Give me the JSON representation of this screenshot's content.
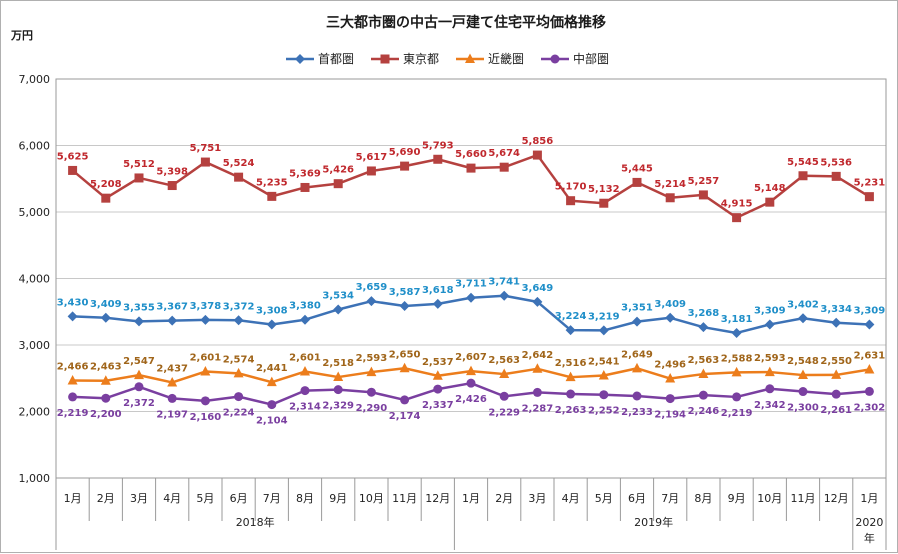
{
  "chart_data": {
    "type": "line",
    "title": "三大都市圏の中古一戸建て住宅平均価格推移",
    "unit_label": "万円",
    "ylim": [
      1000,
      7000
    ],
    "yticks": [
      "1,000",
      "2,000",
      "3,000",
      "4,000",
      "5,000",
      "6,000",
      "7,000"
    ],
    "grid": true,
    "legend_position": "top",
    "categories": [
      "1月",
      "2月",
      "3月",
      "4月",
      "5月",
      "6月",
      "7月",
      "8月",
      "9月",
      "10月",
      "11月",
      "12月",
      "1月",
      "2月",
      "3月",
      "4月",
      "5月",
      "6月",
      "7月",
      "8月",
      "9月",
      "10月",
      "11月",
      "12月",
      "1月"
    ],
    "year_groups": [
      {
        "label": "2018年",
        "span": 12
      },
      {
        "label": "2019年",
        "span": 12
      },
      {
        "label": "2020\n年",
        "span": 1
      }
    ],
    "series": [
      {
        "name": "首都圏",
        "color": "#3d72b6",
        "label_color": "#1f8fc9",
        "marker": "diamond",
        "values": [
          3430,
          3409,
          3355,
          3367,
          3378,
          3372,
          3308,
          3380,
          3534,
          3659,
          3587,
          3618,
          3711,
          3741,
          3649,
          3224,
          3219,
          3351,
          3409,
          3268,
          3181,
          3309,
          3402,
          3334,
          3309
        ],
        "labels": [
          "3,430",
          "3,409",
          "3,355",
          "3,367",
          "3,378",
          "3,372",
          "3,308",
          "3,380",
          "3,534",
          "3,659",
          "3,587",
          "3,618",
          "3,711",
          "3,741",
          "3,649",
          "3,224",
          "3,219",
          "3,351",
          "3,409",
          "3,268",
          "3,181",
          "3,309",
          "3,402",
          "3,334",
          "3,309"
        ]
      },
      {
        "name": "東京都",
        "color": "#b5413f",
        "label_color": "#c0282d",
        "marker": "square",
        "values": [
          5625,
          5208,
          5512,
          5398,
          5751,
          5524,
          5235,
          5369,
          5426,
          5617,
          5690,
          5793,
          5660,
          5674,
          5856,
          5170,
          5132,
          5445,
          5214,
          5257,
          4915,
          5148,
          5545,
          5536,
          5231
        ],
        "labels": [
          "5,625",
          "5,208",
          "5,512",
          "5,398",
          "5,751",
          "5,524",
          "5,235",
          "5,369",
          "5,426",
          "5,617",
          "5,690",
          "5,793",
          "5,660",
          "5,674",
          "5,856",
          "5,170",
          "5,132",
          "5,445",
          "5,214",
          "5,257",
          "4,915",
          "5,148",
          "5,545",
          "5,536",
          "5,231"
        ]
      },
      {
        "name": "近畿圏",
        "color": "#ec7d1c",
        "label_color": "#a0651a",
        "marker": "triangle",
        "values": [
          2466,
          2463,
          2547,
          2437,
          2601,
          2574,
          2441,
          2601,
          2518,
          2593,
          2650,
          2537,
          2607,
          2563,
          2642,
          2516,
          2541,
          2649,
          2496,
          2563,
          2588,
          2593,
          2548,
          2550,
          2631
        ],
        "labels": [
          "2,466",
          "2,463",
          "2,547",
          "2,437",
          "2,601",
          "2,574",
          "2,441",
          "2,601",
          "2,518",
          "2,593",
          "2,650",
          "2,537",
          "2,607",
          "2,563",
          "2,642",
          "2,516",
          "2,541",
          "2,649",
          "2,496",
          "2,563",
          "2,588",
          "2,593",
          "2,548",
          "2,550",
          "2,631"
        ]
      },
      {
        "name": "中部圏",
        "color": "#7a3fa0",
        "label_color": "#7a3fa0",
        "marker": "circle",
        "values": [
          2219,
          2200,
          2372,
          2197,
          2160,
          2224,
          2104,
          2314,
          2329,
          2290,
          2174,
          2337,
          2426,
          2229,
          2287,
          2263,
          2252,
          2233,
          2194,
          2246,
          2219,
          2342,
          2300,
          2261,
          2302
        ],
        "labels": [
          "2,219",
          "2,200",
          "2,372",
          "2,197",
          "2,160",
          "2,224",
          "2,104",
          "2,314",
          "2,329",
          "2,290",
          "2,174",
          "2,337",
          "2,426",
          "2,229",
          "2,287",
          "2,263",
          "2,252",
          "2,233",
          "2,194",
          "2,246",
          "2,219",
          "2,342",
          "2,300",
          "2,261",
          "2,302"
        ]
      }
    ]
  }
}
